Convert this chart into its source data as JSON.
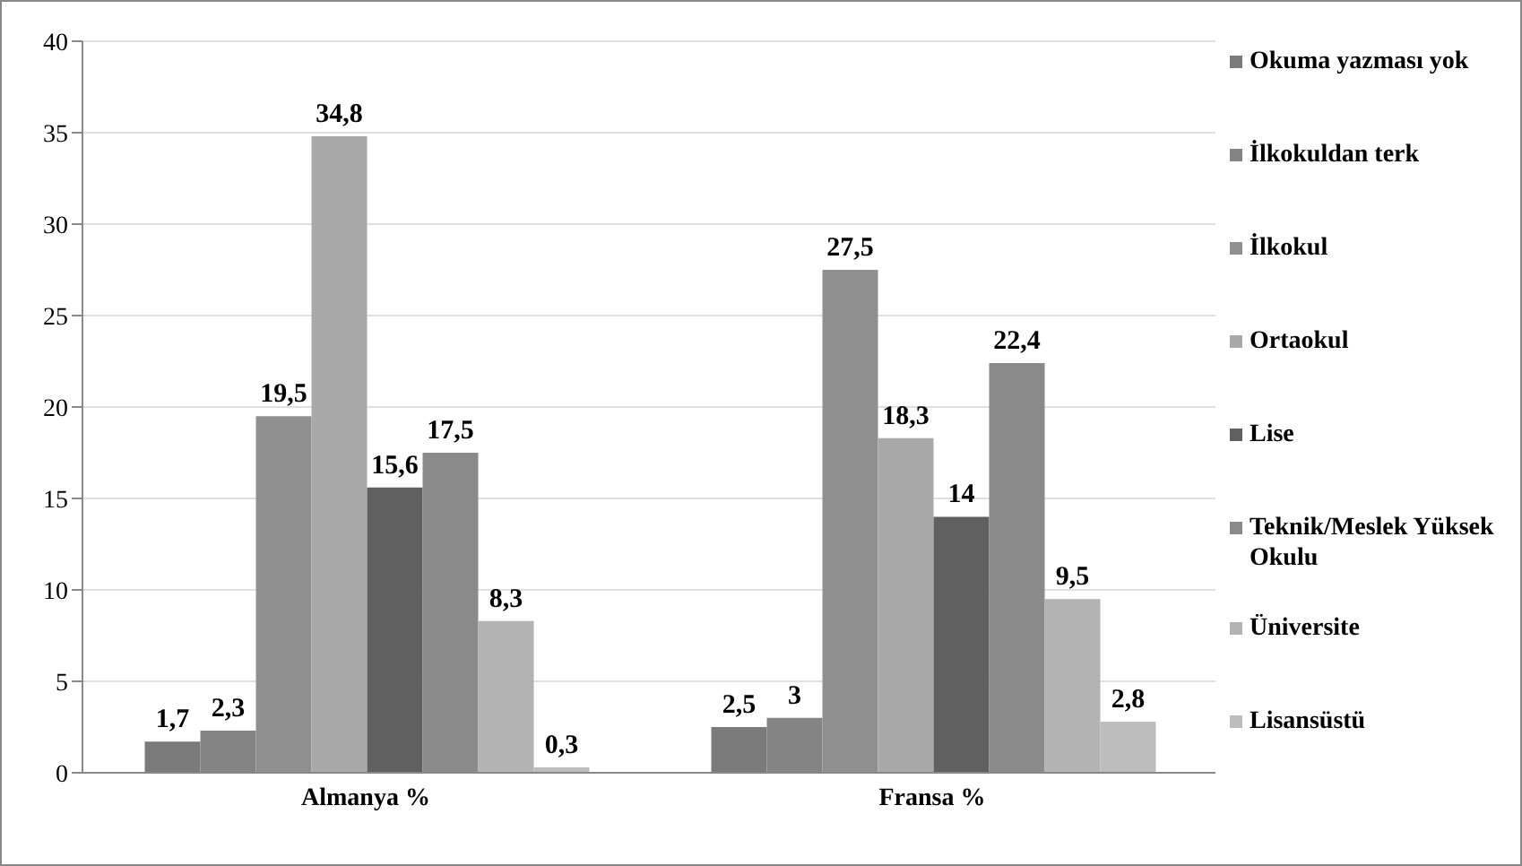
{
  "chart_data": {
    "type": "bar",
    "categories": [
      "Almanya %",
      "Fransa %"
    ],
    "series": [
      {
        "name": "Okuma yazması yok",
        "color": "#7a7a7a",
        "values": [
          1.7,
          2.5
        ],
        "value_labels": [
          "1,7",
          "2,5"
        ]
      },
      {
        "name": "İlkokuldan terk",
        "color": "#848484",
        "values": [
          2.3,
          3
        ],
        "value_labels": [
          "2,3",
          "3"
        ]
      },
      {
        "name": "İlkokul",
        "color": "#8f8f8f",
        "values": [
          19.5,
          27.5
        ],
        "value_labels": [
          "19,5",
          "27,5"
        ]
      },
      {
        "name": "Ortaokul",
        "color": "#a9a9a9",
        "values": [
          34.8,
          18.3
        ],
        "value_labels": [
          "34,8",
          "18,3"
        ]
      },
      {
        "name": "Lise",
        "color": "#606060",
        "values": [
          15.6,
          14
        ],
        "value_labels": [
          "15,6",
          "14"
        ]
      },
      {
        "name": "Teknik/Meslek Yüksek Okulu",
        "color": "#8a8a8a",
        "values": [
          17.5,
          22.4
        ],
        "value_labels": [
          "17,5",
          "22,4"
        ]
      },
      {
        "name": "Üniversite",
        "color": "#b3b3b3",
        "values": [
          8.3,
          9.5
        ],
        "value_labels": [
          "8,3",
          "9,5"
        ]
      },
      {
        "name": "Lisansüstü",
        "color": "#bdbdbd",
        "values": [
          0.3,
          2.8
        ],
        "value_labels": [
          "0,3",
          "2,8"
        ]
      }
    ],
    "ylim": [
      0,
      40
    ],
    "yticks": [
      0,
      5,
      10,
      15,
      20,
      25,
      30,
      35,
      40
    ],
    "grid": "y",
    "legend": "right"
  }
}
